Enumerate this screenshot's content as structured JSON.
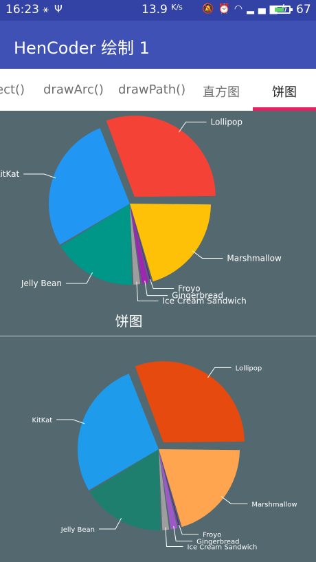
{
  "status_bar": {
    "time": "16:23",
    "net_speed": "13.9",
    "net_speed_unit": "K/s",
    "battery_percent": "67",
    "battery_level": 0.67,
    "left_icons": [
      "usb-icon",
      "usb-debug-icon"
    ],
    "right_icons": [
      "mute-icon",
      "alarm-icon",
      "wifi-icon",
      "signal-4g-icon",
      "charging-icon",
      "battery-icon"
    ]
  },
  "app_bar": {
    "title": "HenCoder 绘制 1"
  },
  "tabs": [
    {
      "label": "ect()",
      "active": false
    },
    {
      "label": "drawArc()",
      "active": false
    },
    {
      "label": "drawPath()",
      "active": false
    },
    {
      "label": "直方图",
      "active": false
    },
    {
      "label": "饼图",
      "active": true
    }
  ],
  "colors": {
    "status_bar": "#3243a5",
    "app_bar": "#3f51b5",
    "tab_indicator": "#e91e63",
    "chart_background": "#53686f"
  },
  "chart_data": [
    {
      "type": "pie",
      "title": "饼图",
      "exploded": "Lollipop",
      "slices": [
        {
          "label": "Marshmallow",
          "value": 74,
          "color": "#ffc107"
        },
        {
          "label": "Froyo",
          "value": 2,
          "color": "#6a1b9a"
        },
        {
          "label": "Gingerbread",
          "value": 6,
          "color": "#9c27b0"
        },
        {
          "label": "Ice Cream Sandwich",
          "value": 6,
          "color": "#9e9e9e"
        },
        {
          "label": "Jelly Bean",
          "value": 61,
          "color": "#009688"
        },
        {
          "label": "KitKat",
          "value": 100,
          "color": "#2196f3"
        },
        {
          "label": "Lollipop",
          "value": 111,
          "color": "#f44336"
        }
      ]
    },
    {
      "type": "pie",
      "title": "",
      "exploded": "Lollipop",
      "slices": [
        {
          "label": "Marshmallow",
          "value": 74,
          "color": "#ffa550"
        },
        {
          "label": "Froyo",
          "value": 2,
          "color": "#6a1b9a"
        },
        {
          "label": "Gingerbread",
          "value": 6,
          "color": "#9c5ac7"
        },
        {
          "label": "Ice Cream Sandwich",
          "value": 6,
          "color": "#9e9e9e"
        },
        {
          "label": "Jelly Bean",
          "value": 61,
          "color": "#1f7f6f"
        },
        {
          "label": "KitKat",
          "value": 100,
          "color": "#1e9bea"
        },
        {
          "label": "Lollipop",
          "value": 111,
          "color": "#e64a0f"
        }
      ]
    }
  ]
}
